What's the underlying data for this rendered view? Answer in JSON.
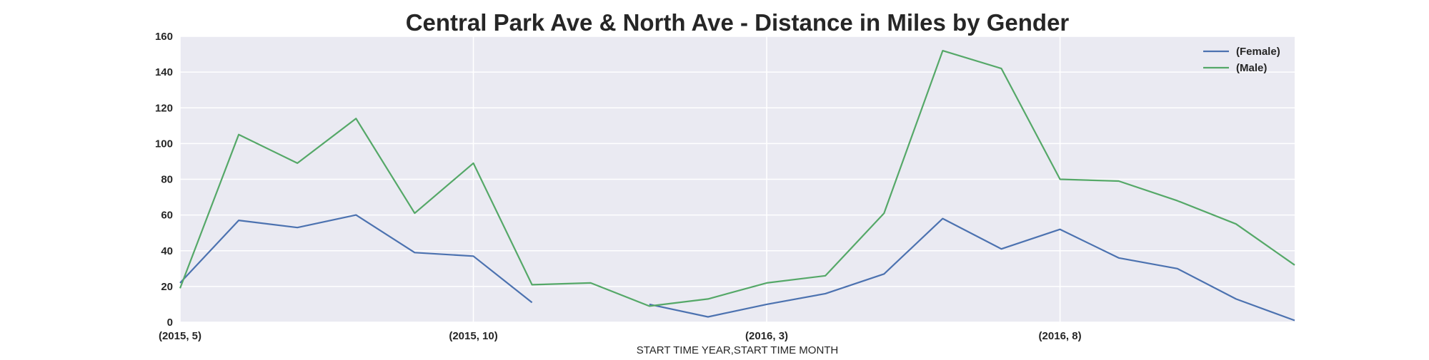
{
  "chart_data": {
    "type": "line",
    "title": "Central Park Ave & North Ave - Distance in Miles by Gender",
    "xlabel": "START TIME YEAR,START TIME MONTH",
    "ylabel": "",
    "ylim": [
      0,
      160
    ],
    "yticks": [
      0,
      20,
      40,
      60,
      80,
      100,
      120,
      140,
      160
    ],
    "x": [
      "(2015, 5)",
      "(2015, 6)",
      "(2015, 7)",
      "(2015, 8)",
      "(2015, 9)",
      "(2015, 10)",
      "(2015, 11)",
      "(2015, 12)",
      "(2016, 1)",
      "(2016, 2)",
      "(2016, 3)",
      "(2016, 4)",
      "(2016, 5)",
      "(2016, 6)",
      "(2016, 7)",
      "(2016, 8)",
      "(2016, 9)",
      "(2016, 10)",
      "(2016, 11)",
      "(2016, 12)"
    ],
    "xtick_labels": [
      "(2015, 5)",
      "(2015, 10)",
      "(2016, 3)",
      "(2016, 8)"
    ],
    "grid": true,
    "legend_position": "top-right",
    "series": [
      {
        "name": "(Female)",
        "color": "#4c72b0",
        "values": [
          22,
          57,
          53,
          60,
          39,
          37,
          11,
          null,
          10,
          3,
          10,
          16,
          27,
          58,
          41,
          52,
          36,
          30,
          13,
          1
        ]
      },
      {
        "name": "(Male)",
        "color": "#55a868",
        "values": [
          19,
          105,
          89,
          114,
          61,
          89,
          21,
          22,
          9,
          13,
          22,
          26,
          61,
          152,
          142,
          80,
          79,
          68,
          55,
          32
        ]
      }
    ],
    "background": "#eaeaf2"
  }
}
